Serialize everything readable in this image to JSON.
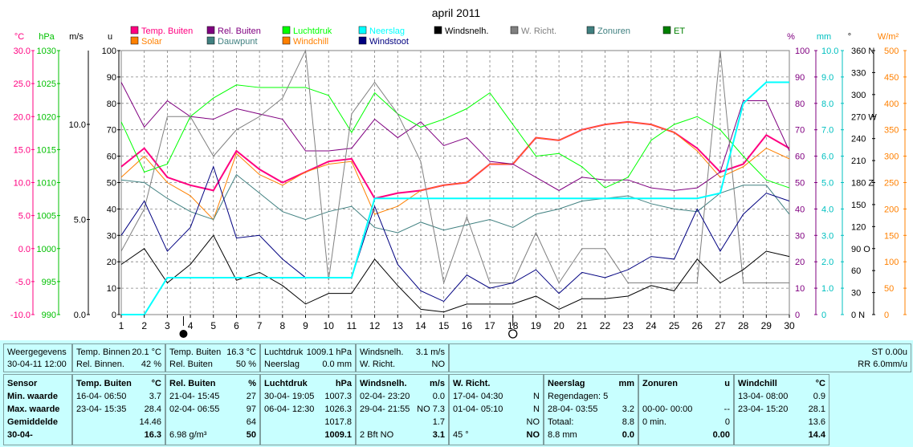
{
  "chart_data": {
    "type": "line",
    "title": "april 2011",
    "x": [
      1,
      2,
      3,
      4,
      5,
      6,
      7,
      8,
      9,
      10,
      11,
      12,
      13,
      14,
      15,
      16,
      17,
      18,
      19,
      20,
      21,
      22,
      23,
      24,
      25,
      26,
      27,
      28,
      29,
      30
    ],
    "axes": {
      "left": [
        {
          "label": "°C",
          "color": "#ff0080",
          "ticks": [
            "30.0",
            "25.0",
            "20.0",
            "15.0",
            "10.0",
            "5.0",
            "0.0",
            "-5.0",
            "-10.0"
          ]
        },
        {
          "label": "hPa",
          "color": "#00c000",
          "ticks": [
            "1030",
            "1025",
            "1020",
            "1015",
            "1010",
            "1005",
            "1000",
            "995",
            "990"
          ]
        },
        {
          "label": "m/s",
          "color": "#000000",
          "ticks": [
            "10.0",
            "5.0",
            "0.0"
          ]
        },
        {
          "label": "u",
          "color": "#000000",
          "ticks": [
            "100",
            "90",
            "80",
            "70",
            "60",
            "50",
            "40",
            "30",
            "20",
            "10",
            "0"
          ]
        }
      ],
      "right": [
        {
          "label": "%",
          "color": "#800080",
          "ticks": [
            "100",
            "90",
            "80",
            "70",
            "60",
            "50",
            "40",
            "30",
            "20",
            "10",
            "0"
          ]
        },
        {
          "label": "mm",
          "color": "#00c0c0",
          "ticks": [
            "10.0",
            "9.0",
            "8.0",
            "7.0",
            "6.0",
            "5.0",
            "4.0",
            "3.0",
            "2.0",
            "1.0",
            "0"
          ]
        },
        {
          "label": "°",
          "color": "#000000",
          "ticks": [
            "360 N",
            "330",
            "300",
            "270 W",
            "240",
            "210",
            "180 Z",
            "150",
            "120",
            "90 O",
            "60",
            "30",
            "0 N"
          ]
        },
        {
          "label": "W/m²",
          "color": "#ff8000",
          "ticks": [
            "500",
            "450",
            "400",
            "350",
            "300",
            "250",
            "200",
            "150",
            "100",
            "50",
            "0"
          ]
        }
      ],
      "ylim": [
        0,
        100
      ]
    },
    "legend": [
      {
        "name": "Temp. Buiten",
        "color": "#ff0080"
      },
      {
        "name": "Solar",
        "color": "#ff8000"
      },
      {
        "name": "Rel. Buiten",
        "color": "#800080"
      },
      {
        "name": "Dauwpunt",
        "color": "#408080"
      },
      {
        "name": "Luchtdruk",
        "color": "#00ff00"
      },
      {
        "name": "Windchill",
        "color": "#ff8000"
      },
      {
        "name": "Neerslag",
        "color": "#00ffff"
      },
      {
        "name": "Windstoot",
        "color": "#000080"
      },
      {
        "name": "Windsnelh.",
        "color": "#000000"
      },
      {
        "name": "W. Richt.",
        "color": "#808080"
      },
      {
        "name": "Zonuren",
        "color": "#408080"
      },
      {
        "name": "ET",
        "color": "#008000"
      }
    ],
    "series": [
      {
        "name": "Temp. Buiten",
        "color": "#ff0080",
        "width": 2,
        "values": [
          56,
          63,
          52,
          49,
          47,
          62,
          55,
          50,
          54,
          58,
          59,
          44,
          46,
          47,
          49,
          50,
          57,
          57,
          67,
          66,
          70,
          72,
          73,
          72,
          69,
          63,
          54,
          57,
          68,
          63
        ]
      },
      {
        "name": "Windchill",
        "color": "#ff8000",
        "width": 1,
        "values": [
          52,
          60,
          50,
          45,
          36,
          61,
          53,
          49,
          54,
          57,
          58,
          38,
          41,
          47,
          49,
          50,
          57,
          57,
          67,
          66,
          70,
          72,
          73,
          72,
          69,
          62,
          52,
          56,
          63,
          59
        ]
      },
      {
        "name": "Rel. Buiten",
        "color": "#800080",
        "width": 1,
        "values": [
          88,
          71,
          81,
          75,
          74,
          78,
          76,
          74,
          62,
          62,
          63,
          74,
          67,
          73,
          64,
          67,
          58,
          57,
          52,
          47,
          52,
          51,
          51,
          48,
          47,
          48,
          54,
          81,
          81,
          62
        ]
      },
      {
        "name": "Luchtdruk",
        "color": "#00ff00",
        "width": 1,
        "values": [
          73,
          54,
          57,
          75,
          82,
          87,
          86,
          86,
          86,
          83,
          69,
          84,
          76,
          71,
          74,
          78,
          84,
          72,
          60,
          61,
          56,
          48,
          52,
          66,
          72,
          75,
          70,
          60,
          51,
          48
        ]
      },
      {
        "name": "Dauwpunt",
        "color": "#408080",
        "width": 1,
        "values": [
          51,
          50,
          44,
          39,
          36,
          53,
          46,
          39,
          36,
          39,
          41,
          33,
          31,
          35,
          32,
          34,
          36,
          33,
          38,
          40,
          43,
          44,
          45,
          42,
          40,
          39,
          46,
          49,
          49,
          38
        ]
      },
      {
        "name": "W. Richt.",
        "color": "#808080",
        "width": 1,
        "values": [
          24,
          40,
          75,
          75,
          60,
          70,
          75,
          82,
          100,
          13,
          76,
          88,
          76,
          58,
          12,
          37,
          12,
          12,
          31,
          12,
          25,
          25,
          12,
          12,
          12,
          12,
          100,
          12,
          12,
          12
        ]
      },
      {
        "name": "Windstoot",
        "color": "#000080",
        "width": 1,
        "values": [
          30,
          43,
          24,
          33,
          56,
          29,
          30,
          21,
          14,
          14,
          14,
          41,
          19,
          9,
          5,
          15,
          10,
          12,
          17,
          8,
          16,
          14,
          17,
          22,
          21,
          40,
          24,
          38,
          46,
          43
        ]
      },
      {
        "name": "Windsnelh.",
        "color": "#000000",
        "width": 1,
        "values": [
          19,
          25,
          12,
          19,
          30,
          13,
          16,
          11,
          4,
          8,
          8,
          21,
          11,
          2,
          1,
          4,
          4,
          4,
          7,
          2,
          6,
          6,
          7,
          11,
          9,
          21,
          12,
          17,
          24,
          22
        ]
      },
      {
        "name": "Neerslag",
        "color": "#00ffff",
        "width": 2,
        "values": [
          0,
          0,
          14,
          14,
          14,
          14,
          14,
          14,
          14,
          14,
          14,
          44,
          44,
          44,
          44,
          44,
          44,
          44,
          44,
          44,
          44,
          44,
          44,
          44,
          44,
          44,
          46,
          80,
          88,
          88
        ]
      }
    ],
    "moon_markers": [
      {
        "x": 3.7,
        "type": "new"
      },
      {
        "x": 18.0,
        "type": "full"
      }
    ]
  },
  "table": {
    "row1": [
      {
        "a": "Weergegevens",
        "b": "30-04-11 12:00"
      },
      {
        "a": "Temp. Binnen",
        "a2": "20.1 °C",
        "b": "Rel. Binnen.",
        "b2": "42 %"
      },
      {
        "a": "Temp. Buiten",
        "a2": "16.3 °C",
        "b": "Rel. Buiten",
        "b2": "50 %"
      },
      {
        "a": "Luchtdruk",
        "a2": "1009.1 hPa",
        "b": "Neerslag",
        "b2": "0.0 mm"
      },
      {
        "a": "Windsnelh.",
        "a2": "3.1 m/s",
        "b": "W. Richt.",
        "b2": "NO"
      },
      {
        "a": "ST 0.00u",
        "b": "RR 6.0mm/u"
      }
    ],
    "sensor": {
      "title": "Sensor",
      "rows": [
        "Min. waarde",
        "Max. waarde",
        "Gemiddelde",
        "30-04-"
      ]
    },
    "columns": [
      {
        "head": "Temp. Buiten",
        "unit": "°C",
        "rows": [
          [
            "16-04- 06:50",
            "3.7"
          ],
          [
            "23-04- 15:35",
            "28.4"
          ],
          [
            "",
            "14.46"
          ],
          [
            "",
            "16.3"
          ]
        ]
      },
      {
        "head": "Rel. Buiten",
        "unit": "%",
        "rows": [
          [
            "21-04- 15:45",
            "27"
          ],
          [
            "02-04- 06:55",
            "97"
          ],
          [
            "",
            "64"
          ],
          [
            "6.98 g/m³",
            "50"
          ]
        ]
      },
      {
        "head": "Luchtdruk",
        "unit": "hPa",
        "rows": [
          [
            "30-04- 19:05",
            "1007.3"
          ],
          [
            "06-04- 12:30",
            "1026.3"
          ],
          [
            "",
            "1017.8"
          ],
          [
            "",
            "1009.1"
          ]
        ]
      },
      {
        "head": "Windsnelh.",
        "unit": "m/s",
        "rows": [
          [
            "02-04- 23:20",
            "0.0"
          ],
          [
            "29-04- 21:55",
            "NO 7.3"
          ],
          [
            "",
            "1.7"
          ],
          [
            "2 Bft NO",
            "3.1"
          ]
        ]
      },
      {
        "head": "W. Richt.",
        "unit": "",
        "rows": [
          [
            "17-04- 04:30",
            "N"
          ],
          [
            "01-04- 05:10",
            "N"
          ],
          [
            "",
            "NO"
          ],
          [
            "45 °",
            "NO"
          ]
        ]
      },
      {
        "head": "Neerslag",
        "unit": "mm",
        "rows": [
          [
            "Regendagen: 5",
            ""
          ],
          [
            "28-04- 03:55",
            "3.2"
          ],
          [
            "Totaal:",
            "8.8"
          ],
          [
            "8.8 mm",
            "0.0"
          ]
        ]
      },
      {
        "head": "Zonuren",
        "unit": "u",
        "rows": [
          [
            "",
            ""
          ],
          [
            "00-00- 00:00",
            "--"
          ],
          [
            "0 min.",
            "0"
          ],
          [
            "",
            "0.00"
          ]
        ]
      },
      {
        "head": "Windchill",
        "unit": "°C",
        "rows": [
          [
            "13-04- 08:00",
            "0.9"
          ],
          [
            "23-04- 15:20",
            "28.1"
          ],
          [
            "",
            "13.6"
          ],
          [
            "",
            "14.4"
          ]
        ]
      }
    ]
  }
}
